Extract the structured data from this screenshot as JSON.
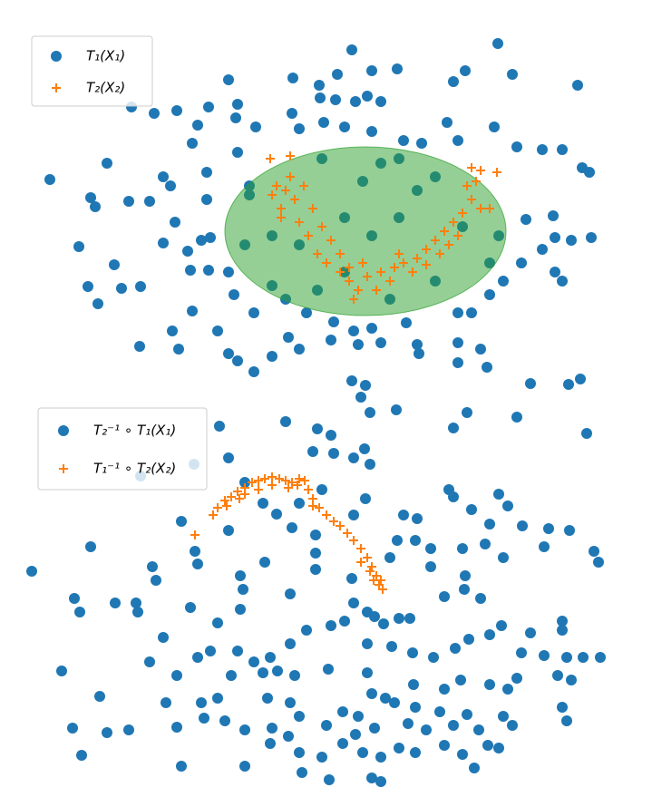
{
  "chart_data": [
    {
      "type": "scatter",
      "xlim": [
        0,
        660
      ],
      "ylim": [
        0,
        400
      ],
      "ellipse": {
        "center": [
          373,
          175
        ],
        "width": 310,
        "height": 186,
        "color": "#2ca02c"
      },
      "series": [
        {
          "name": "T₁(X₁)",
          "color": "#1f77b4",
          "marker": "circle",
          "x": [
            358,
            519,
            483,
            470,
            535,
            607,
            293,
            322,
            342,
            380,
            408,
            222,
            115,
            140,
            165,
            200,
            232,
            323,
            340,
            362,
            375,
            390,
            292,
            327,
            230,
            188,
            182,
            252,
            300,
            350,
            380,
            415,
            435,
            463,
            475,
            515,
            540,
            568,
            590,
            612,
            620,
            88,
            150,
            158,
            198,
            232,
            25,
            70,
            75,
            112,
            135,
            198,
            245,
            163,
            192,
            57,
            150,
            177,
            202,
            96,
            67,
            78,
            104,
            125,
            180,
            200,
            222,
            228,
            182,
            250,
            285,
            308,
            338,
            360,
            380,
            418,
            475,
            490,
            510,
            525,
            545,
            550,
            580,
            582,
            600,
            622,
            568,
            582,
            590,
            124,
            160,
            167,
            210,
            222,
            232,
            250,
            270,
            288,
            300,
            335,
            365,
            390,
            430,
            432,
            475,
            500,
            475,
            507,
            555,
            610,
            597,
            245,
            270,
            300,
            325,
            350,
            370,
            390,
            410,
            430,
            450,
            480,
            520,
            510,
            270,
            320,
            400,
            450,
            350,
            240,
            380,
            410
          ],
          "values": [
            375,
            382,
            352,
            340,
            348,
            336,
            344,
            336,
            348,
            352,
            354,
            342,
            312,
            305,
            308,
            312,
            315,
            322,
            320,
            318,
            324,
            318,
            305,
            295,
            300,
            292,
            272,
            290,
            288,
            290,
            285,
            275,
            272,
            295,
            275,
            290,
            268,
            265,
            265,
            245,
            240,
            250,
            235,
            225,
            240,
            262,
            232,
            212,
            202,
            208,
            208,
            210,
            225,
            185,
            165,
            158,
            162,
            153,
            168,
            138,
            114,
            95,
            112,
            114,
            132,
            132,
            130,
            105,
            87,
            85,
            100,
            85,
            75,
            65,
            68,
            74,
            85,
            85,
            105,
            120,
            140,
            188,
            192,
            168,
            165,
            168,
            155,
            130,
            120,
            48,
            65,
            45,
            65,
            40,
            32,
            20,
            37,
            58,
            45,
            55,
            50,
            52,
            50,
            40,
            52,
            45,
            30,
            25,
            7,
            12,
            6,
            215,
            170,
            160,
            255,
            190,
            230,
            250,
            255,
            220,
            235,
            180,
            170,
            140,
            115,
            110,
            100,
            120,
            130,
            160,
            170,
            190
          ]
        },
        {
          "name": "T₂(X₂)",
          "color": "#ff7f0e",
          "marker": "plus",
          "x": [
            268,
            290,
            275,
            285,
            295,
            280,
            300,
            310,
            320,
            330,
            345,
            355,
            365,
            360,
            375,
            390,
            405,
            415,
            430,
            440,
            450,
            460,
            470,
            480,
            490,
            485,
            495,
            490,
            500,
            518,
            315,
            335,
            345,
            385,
            400,
            425,
            440,
            465,
            475,
            500,
            510,
            270,
            305,
            290,
            325,
            355,
            370,
            410,
            455,
            280
          ],
          "values": [
            255,
            258,
            225,
            220,
            210,
            190,
            185,
            170,
            150,
            140,
            130,
            120,
            110,
            100,
            125,
            130,
            135,
            140,
            145,
            155,
            165,
            175,
            185,
            195,
            210,
            225,
            230,
            245,
            242,
            240,
            200,
            165,
            150,
            110,
            120,
            130,
            138,
            160,
            170,
            200,
            200,
            215,
            225,
            235,
            180,
            135,
            140,
            150,
            150,
            200
          ]
        }
      ]
    },
    {
      "type": "scatter",
      "xlim": [
        0,
        660
      ],
      "ylim": [
        0,
        460
      ],
      "series": [
        {
          "name": "T₂⁻¹ ∘ T₁(X₁)",
          "color": "#1f77b4",
          "marker": "circle",
          "x": [
            358,
            373,
            368,
            378,
            407,
            212,
            285,
            320,
            335,
            222,
            315,
            338,
            360,
            372,
            378,
            617,
            540,
            485,
            470,
            184,
            125,
            240,
            260,
            300,
            325,
            373,
            465,
            470,
            520,
            530,
            415,
            430,
            490,
            510,
            546,
            575,
            598,
            70,
            185,
            170,
            222,
            275,
            292,
            318,
            360,
            408,
            428,
            445,
            480,
            505,
            570,
            625,
            630,
            5,
            138,
            142,
            188,
            235,
            238,
            262,
            318,
            318,
            358,
            400,
            445,
            483,
            482,
            525,
            52,
            58,
            97,
            120,
            122,
            180,
            235,
            290,
            360,
            375,
            383,
            393,
            410,
            422,
            460,
            500,
            555,
            590,
            590,
            150,
            210,
            202,
            232,
            250,
            268,
            276,
            290,
            308,
            335,
            350,
            375,
            402,
            425,
            448,
            472,
            487,
            510,
            523,
            545,
            570,
            595,
            613,
            632,
            38,
            135,
            165,
            188,
            225,
            260,
            295,
            332,
            375,
            380,
            395,
            426,
            460,
            478,
            510,
            530,
            540,
            585,
            600,
            80,
            153,
            192,
            210,
            265,
            290,
            300,
            348,
            365,
            405,
            428,
            455,
            485,
            525,
            590,
            595,
            50,
            88,
            112,
            165,
            195,
            218,
            240,
            270,
            288,
            330,
            362,
            383,
            420,
            440,
            470,
            498,
            535,
            60,
            170,
            240,
            268,
            300,
            325,
            348,
            370,
            390,
            410,
            428,
            460,
            480,
            508,
            520,
            303,
            333,
            380,
            390,
            493
          ],
          "values": [
            455,
            450,
            437,
            420,
            423,
            405,
            410,
            402,
            395,
            370,
            377,
            375,
            370,
            380,
            363,
            397,
            415,
            420,
            403,
            363,
            350,
            343,
            320,
            320,
            335,
            325,
            335,
            327,
            330,
            317,
            307,
            303,
            313,
            297,
            295,
            292,
            290,
            272,
            267,
            300,
            290,
            308,
            293,
            285,
            307,
            279,
            279,
            270,
            270,
            275,
            272,
            267,
            255,
            245,
            250,
            235,
            253,
            240,
            225,
            255,
            265,
            247,
            237,
            260,
            250,
            240,
            225,
            260,
            215,
            200,
            210,
            210,
            200,
            205,
            203,
            220,
            210,
            200,
            195,
            187,
            193,
            193,
            217,
            215,
            177,
            190,
            180,
            172,
            188,
            157,
            157,
            145,
            150,
            135,
            165,
            180,
            185,
            190,
            165,
            162,
            155,
            150,
            160,
            170,
            175,
            185,
            155,
            152,
            150,
            150,
            150,
            135,
            145,
            130,
            150,
            130,
            133,
            130,
            137,
            133,
            110,
            105,
            120,
            115,
            125,
            120,
            115,
            127,
            130,
            125,
            107,
            100,
            100,
            105,
            105,
            100,
            85,
            90,
            85,
            100,
            95,
            90,
            87,
            85,
            95,
            80,
            72,
            67,
            70,
            73,
            83,
            80,
            70,
            72,
            63,
            75,
            65,
            72,
            77,
            70,
            75,
            70,
            75,
            42,
            30,
            30,
            55,
            45,
            40,
            55,
            45,
            40,
            50,
            45,
            53,
            43,
            53,
            50,
            23,
            15,
            17,
            13,
            28
          ]
        },
        {
          "name": "T₁⁻¹ ∘ T₂(X₂)",
          "color": "#ff7f0e",
          "marker": "plus",
          "x": [
            185,
            205,
            210,
            218,
            225,
            232,
            240,
            248,
            255,
            262,
            270,
            278,
            285,
            292,
            300,
            306,
            310,
            315,
            322,
            330,
            338,
            345,
            353,
            360,
            368,
            375,
            380,
            385,
            388,
            392,
            378,
            382,
            240,
            255,
            270,
            288,
            298,
            234,
            220,
            315,
            368,
            390
          ],
          "values": [
            285,
            307,
            315,
            323,
            327,
            333,
            337,
            343,
            345,
            347,
            349,
            347,
            345,
            343,
            347,
            345,
            335,
            325,
            315,
            307,
            300,
            295,
            287,
            279,
            270,
            260,
            250,
            240,
            230,
            225,
            245,
            235,
            330,
            335,
            340,
            337,
            340,
            325,
            317,
            317,
            255,
            235
          ]
        }
      ]
    }
  ]
}
